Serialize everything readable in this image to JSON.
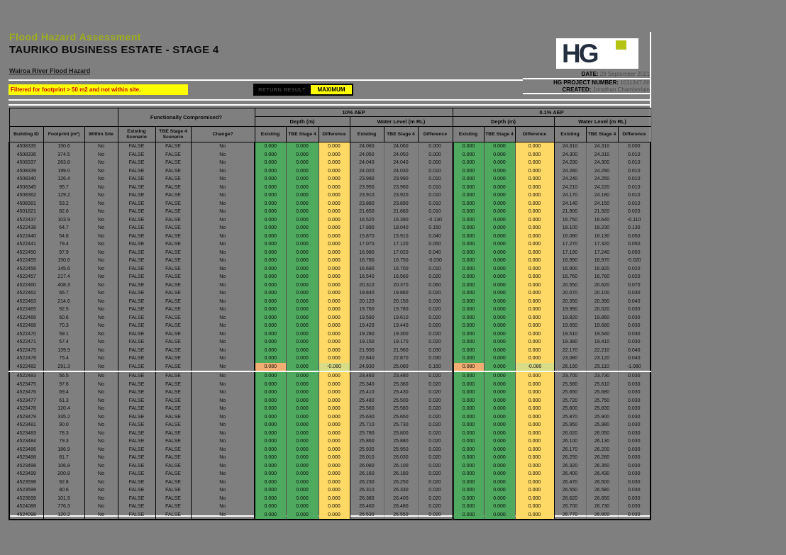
{
  "header": {
    "title1": "Flood Hazard Assessment",
    "title2": "TAURIKO BUSINESS ESTATE - STAGE 4",
    "subtitle": "Wairoa River Flood Hazard",
    "filter_note": "Filtered for footprint > 50 m2 and not within site.",
    "result_label": "RETURN RESULT",
    "result_value": "MAXIMUM",
    "logo_text": "HG",
    "meta": [
      {
        "label": "DATE:",
        "value": "29 September 2021"
      },
      {
        "label": "HG PROJECT NUMBER:",
        "value": "1011347.00"
      },
      {
        "label": "CREATED:",
        "value": "Jonathan Chamberlain"
      }
    ]
  },
  "colors": {
    "sheet_bg": "#7f7f7f",
    "banner_bg": "#ffff00",
    "banner_text": "#cc0000",
    "title_green": "#9fae1c",
    "cell_green": "#4fa95f",
    "cell_yellow": "#ffd965",
    "cell_orange": "#f2ae72",
    "cell_pale": "#d8dc85",
    "logo_navy": "#232e3f",
    "logo_green": "#b4c314"
  },
  "table": {
    "group_headers": {
      "functionally_compromised": "Functionally Compromised?",
      "aep10": "10% AEP",
      "aep01": "0.1% AEP",
      "depth": "Depth (m)",
      "water_level": "Water Level (m RL)"
    },
    "columns": {
      "building_id": "Building ID",
      "footprint": "Footprint (m²)",
      "within_site": "Within Site",
      "existing_scenario": "Existing Scenario",
      "tbe_scenario": "TBE Stage 4 Scenario",
      "change": "Change?",
      "existing": "Existing",
      "tbe_stage4": "TBE Stage 4",
      "difference": "Difference"
    },
    "defaults": {
      "within_site": "No",
      "existing_scenario": "FALSE",
      "tbe_scenario": "FALSE",
      "change": "No",
      "depth": [
        "0.000",
        "0.000",
        "0.000"
      ]
    },
    "rows": [
      {
        "id": "4508335",
        "footprint": "150.6",
        "wl10": [
          "24.060",
          "24.060",
          "0.000"
        ],
        "wl01": [
          "24.310",
          "24.310",
          "0.000"
        ]
      },
      {
        "id": "4508336",
        "footprint": "374.5",
        "wl10": [
          "24.050",
          "24.050",
          "0.000"
        ],
        "wl01": [
          "24.300",
          "24.310",
          "0.010"
        ]
      },
      {
        "id": "4508337",
        "footprint": "263.8",
        "wl10": [
          "24.040",
          "24.040",
          "0.000"
        ],
        "wl01": [
          "24.290",
          "24.300",
          "0.010"
        ]
      },
      {
        "id": "4508339",
        "footprint": "199.0",
        "wl10": [
          "24.020",
          "24.030",
          "0.010"
        ],
        "wl01": [
          "24.280",
          "24.290",
          "0.010"
        ]
      },
      {
        "id": "4508340",
        "footprint": "126.4",
        "wl10": [
          "23.980",
          "23.990",
          "0.010"
        ],
        "wl01": [
          "24.240",
          "24.250",
          "0.010"
        ]
      },
      {
        "id": "4508345",
        "footprint": "95.7",
        "wl10": [
          "23.950",
          "23.960",
          "0.010"
        ],
        "wl01": [
          "24.210",
          "24.220",
          "0.010"
        ]
      },
      {
        "id": "4508362",
        "footprint": "129.2",
        "wl10": [
          "23.910",
          "23.920",
          "0.010"
        ],
        "wl01": [
          "24.170",
          "24.180",
          "0.010"
        ]
      },
      {
        "id": "4508381",
        "footprint": "53.2",
        "wl10": [
          "23.880",
          "23.890",
          "0.010"
        ],
        "wl01": [
          "24.140",
          "24.150",
          "0.010"
        ]
      },
      {
        "id": "4501821",
        "footprint": "82.6",
        "wl10": [
          "21.650",
          "21.660",
          "0.010"
        ],
        "wl01": [
          "21.900",
          "21.920",
          "0.020"
        ]
      },
      {
        "id": "4522437",
        "footprint": "103.9",
        "wl10": [
          "16.520",
          "16.390",
          "-0.130"
        ],
        "wl01": [
          "16.750",
          "16.640",
          "-0.110"
        ]
      },
      {
        "id": "4522438",
        "footprint": "64.7",
        "wl10": [
          "17.890",
          "18.040",
          "0.150"
        ],
        "wl01": [
          "18.100",
          "18.230",
          "0.130"
        ]
      },
      {
        "id": "4522440",
        "footprint": "54.8",
        "wl10": [
          "15.870",
          "15.910",
          "0.040"
        ],
        "wl01": [
          "16.080",
          "16.130",
          "0.050"
        ]
      },
      {
        "id": "4522441",
        "footprint": "79.4",
        "wl10": [
          "17.070",
          "17.120",
          "0.050"
        ],
        "wl01": [
          "17.270",
          "17.320",
          "0.050"
        ]
      },
      {
        "id": "4522450",
        "footprint": "97.9",
        "wl10": [
          "16.980",
          "17.020",
          "0.040"
        ],
        "wl01": [
          "17.190",
          "17.240",
          "0.050"
        ]
      },
      {
        "id": "4522455",
        "footprint": "150.6",
        "wl10": [
          "16.780",
          "16.750",
          "-0.030"
        ],
        "wl01": [
          "16.990",
          "16.970",
          "-0.020"
        ]
      },
      {
        "id": "4522456",
        "footprint": "145.6",
        "wl10": [
          "16.690",
          "16.700",
          "0.010"
        ],
        "wl01": [
          "16.900",
          "16.920",
          "0.020"
        ]
      },
      {
        "id": "4522457",
        "footprint": "217.4",
        "wl10": [
          "16.540",
          "16.560",
          "0.020"
        ],
        "wl01": [
          "16.760",
          "16.780",
          "0.020"
        ]
      },
      {
        "id": "4522460",
        "footprint": "408.3",
        "wl10": [
          "20.310",
          "20.370",
          "0.060"
        ],
        "wl01": [
          "20.550",
          "20.620",
          "0.070"
        ]
      },
      {
        "id": "4522462",
        "footprint": "66.7",
        "wl10": [
          "19.840",
          "19.860",
          "0.020"
        ],
        "wl01": [
          "20.070",
          "20.100",
          "0.030"
        ]
      },
      {
        "id": "4522463",
        "footprint": "214.6",
        "wl10": [
          "20.120",
          "20.150",
          "0.030"
        ],
        "wl01": [
          "20.350",
          "20.390",
          "0.040"
        ]
      },
      {
        "id": "4522465",
        "footprint": "92.5",
        "wl10": [
          "19.760",
          "19.780",
          "0.020"
        ],
        "wl01": [
          "19.990",
          "20.020",
          "0.030"
        ]
      },
      {
        "id": "4522466",
        "footprint": "60.6",
        "wl10": [
          "19.590",
          "19.610",
          "0.020"
        ],
        "wl01": [
          "19.820",
          "19.850",
          "0.030"
        ]
      },
      {
        "id": "4522468",
        "footprint": "70.3",
        "wl10": [
          "19.420",
          "19.440",
          "0.020"
        ],
        "wl01": [
          "19.650",
          "19.680",
          "0.030"
        ]
      },
      {
        "id": "4522470",
        "footprint": "59.1",
        "wl10": [
          "19.280",
          "19.300",
          "0.020"
        ],
        "wl01": [
          "19.510",
          "19.540",
          "0.030"
        ]
      },
      {
        "id": "4522471",
        "footprint": "57.4",
        "wl10": [
          "19.150",
          "19.170",
          "0.020"
        ],
        "wl01": [
          "19.380",
          "19.410",
          "0.030"
        ]
      },
      {
        "id": "4522475",
        "footprint": "139.9",
        "wl10": [
          "21.930",
          "21.960",
          "0.030"
        ],
        "wl01": [
          "22.170",
          "22.210",
          "0.040"
        ]
      },
      {
        "id": "4522478",
        "footprint": "75.4",
        "wl10": [
          "22.840",
          "22.870",
          "0.030"
        ],
        "wl01": [
          "23.080",
          "23.120",
          "0.040"
        ]
      },
      {
        "id": "4522482",
        "footprint": "291.3",
        "highlight": true,
        "separator_after": true,
        "depth10": [
          "0.080",
          "0.000",
          "-0.080"
        ],
        "wl10": [
          "24.930",
          "25.080",
          "0.150"
        ],
        "depth01": [
          "0.080",
          "0.000",
          "-0.080"
        ],
        "wl01": [
          "26.190",
          "25.110",
          "-1.080"
        ]
      },
      {
        "id": "4522483",
        "footprint": "56.5",
        "wl10": [
          "23.460",
          "23.480",
          "0.020"
        ],
        "wl01": [
          "23.700",
          "23.730",
          "0.030"
        ]
      },
      {
        "id": "4523475",
        "footprint": "97.6",
        "wl10": [
          "25.340",
          "25.360",
          "0.020"
        ],
        "wl01": [
          "25.580",
          "25.610",
          "0.030"
        ]
      },
      {
        "id": "4523476",
        "footprint": "69.4",
        "wl10": [
          "25.410",
          "25.430",
          "0.020"
        ],
        "wl01": [
          "25.650",
          "25.680",
          "0.030"
        ]
      },
      {
        "id": "4523477",
        "footprint": "61.3",
        "wl10": [
          "25.480",
          "25.500",
          "0.020"
        ],
        "wl01": [
          "25.720",
          "25.750",
          "0.030"
        ]
      },
      {
        "id": "4523478",
        "footprint": "120.4",
        "wl10": [
          "25.560",
          "25.580",
          "0.020"
        ],
        "wl01": [
          "25.800",
          "25.830",
          "0.030"
        ]
      },
      {
        "id": "4523479",
        "footprint": "335.2",
        "wl10": [
          "25.630",
          "25.650",
          "0.020"
        ],
        "wl01": [
          "25.870",
          "25.900",
          "0.030"
        ]
      },
      {
        "id": "4523481",
        "footprint": "90.0",
        "wl10": [
          "25.710",
          "25.730",
          "0.020"
        ],
        "wl01": [
          "25.950",
          "25.980",
          "0.030"
        ]
      },
      {
        "id": "4523483",
        "footprint": "78.3",
        "wl10": [
          "25.780",
          "25.800",
          "0.020"
        ],
        "wl01": [
          "26.020",
          "26.050",
          "0.030"
        ]
      },
      {
        "id": "4523484",
        "footprint": "79.3",
        "wl10": [
          "25.860",
          "25.880",
          "0.020"
        ],
        "wl01": [
          "26.100",
          "26.130",
          "0.030"
        ]
      },
      {
        "id": "4523486",
        "footprint": "186.9",
        "wl10": [
          "25.930",
          "25.950",
          "0.020"
        ],
        "wl01": [
          "26.170",
          "26.200",
          "0.030"
        ]
      },
      {
        "id": "4523488",
        "footprint": "81.7",
        "wl10": [
          "26.010",
          "26.030",
          "0.020"
        ],
        "wl01": [
          "26.250",
          "26.280",
          "0.030"
        ]
      },
      {
        "id": "4523498",
        "footprint": "106.8",
        "wl10": [
          "26.080",
          "26.100",
          "0.020"
        ],
        "wl01": [
          "26.320",
          "26.350",
          "0.030"
        ]
      },
      {
        "id": "4523499",
        "footprint": "200.8",
        "wl10": [
          "26.160",
          "26.180",
          "0.020"
        ],
        "wl01": [
          "26.400",
          "26.430",
          "0.030"
        ]
      },
      {
        "id": "4523598",
        "footprint": "92.8",
        "wl10": [
          "26.230",
          "26.250",
          "0.020"
        ],
        "wl01": [
          "26.470",
          "26.500",
          "0.030"
        ]
      },
      {
        "id": "4523599",
        "footprint": "80.6",
        "wl10": [
          "26.310",
          "26.330",
          "0.020"
        ],
        "wl01": [
          "26.550",
          "26.580",
          "0.030"
        ]
      },
      {
        "id": "4523699",
        "footprint": "101.9",
        "wl10": [
          "26.380",
          "26.400",
          "0.020"
        ],
        "wl01": [
          "26.620",
          "26.650",
          "0.030"
        ]
      },
      {
        "id": "4524088",
        "footprint": "776.3",
        "wl10": [
          "26.460",
          "26.480",
          "0.020"
        ],
        "wl01": [
          "26.700",
          "26.730",
          "0.030"
        ]
      },
      {
        "id": "4524098",
        "footprint": "120.2",
        "wl10": [
          "26.530",
          "26.550",
          "0.020"
        ],
        "wl01": [
          "26.770",
          "26.800",
          "0.030"
        ]
      }
    ]
  }
}
